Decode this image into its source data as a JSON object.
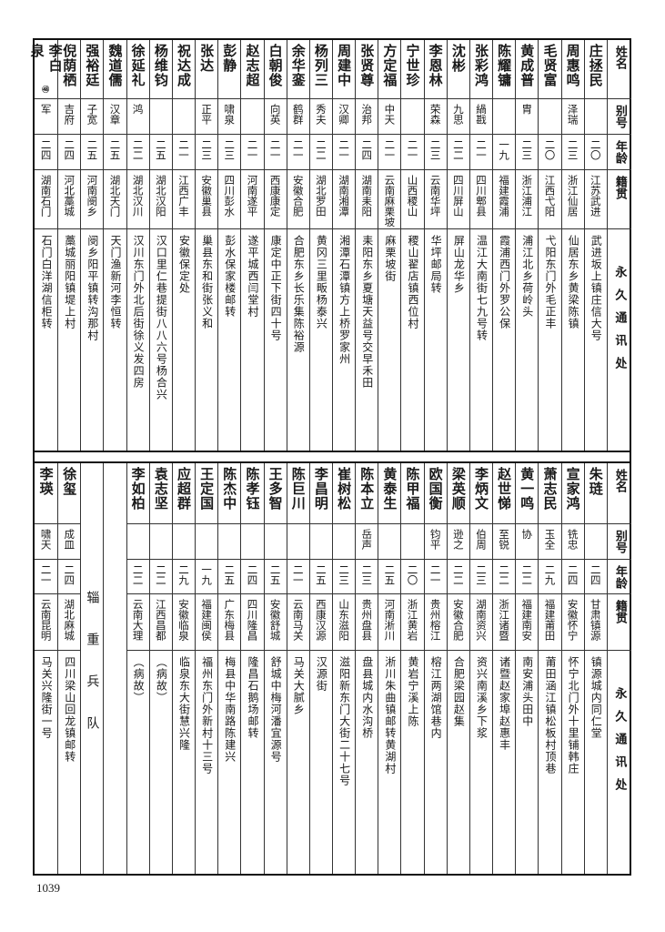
{
  "header": {
    "name": "姓名",
    "alias": "别号",
    "age": "年龄",
    "native": "籍贯",
    "address": "永久通讯处"
  },
  "top_table": {
    "rows": [
      {
        "name": "庄拯民",
        "alias": "",
        "age": "二〇",
        "native": "江苏武进",
        "address": "武进坂上镇庄信大号"
      },
      {
        "name": "周惠鸣",
        "alias": "泽瑞",
        "age": "二三",
        "native": "浙江仙居",
        "address": "仙居东乡黄梁陈镇"
      },
      {
        "name": "毛贤富",
        "alias": "",
        "age": "二〇",
        "native": "江西弋阳",
        "address": "弋阳东门外毛正丰"
      },
      {
        "name": "黄成普",
        "alias": "胄",
        "age": "二三",
        "native": "浙江浦江",
        "address": "浦江北乡荷岭头"
      },
      {
        "name": "陈耀镛",
        "alias": "",
        "age": "一九",
        "native": "福建霞浦",
        "address": "霞浦西门外罗公保"
      },
      {
        "name": "张彩鸿",
        "alias": "緺戡",
        "age": "二一",
        "native": "四川郫县",
        "address": "温江大南街七九号转"
      },
      {
        "name": "沈彬",
        "alias": "九思",
        "age": "二二",
        "native": "四川屏山",
        "address": "屏山龙华乡"
      },
      {
        "name": "李恩林",
        "alias": "荣森",
        "age": "二三",
        "native": "云南华坪",
        "address": "华坪邮局转"
      },
      {
        "name": "宁世珍",
        "alias": "",
        "age": "二一",
        "native": "山西稷山",
        "address": "稷山翟店镇西位村"
      },
      {
        "name": "方定福",
        "alias": "中天",
        "age": "二一",
        "native": "云南麻栗坡",
        "address": "麻栗坡街"
      },
      {
        "name": "张贤尊",
        "alias": "治邦",
        "age": "二四",
        "native": "湖南耒阳",
        "address": "耒阳东乡夏塘天益号交早禾田"
      },
      {
        "name": "周建中",
        "alias": "汉卿",
        "age": "二一",
        "native": "湖南湘潭",
        "address": "湘潭石潭镇方上桥罗家州"
      },
      {
        "name": "杨列三",
        "alias": "秀夫",
        "age": "二二",
        "native": "湖北罗田",
        "address": "黄冈三里畈杨泰兴"
      },
      {
        "name": "余华銮",
        "alias": "鹤群",
        "age": "二一",
        "native": "安徽合肥",
        "address": "合肥东乡长乐集陈裕源"
      },
      {
        "name": "白朝俊",
        "alias": "向英",
        "age": "二一",
        "native": "西康康定",
        "address": "康定中正下街四十号"
      },
      {
        "name": "赵志超",
        "alias": "",
        "age": "二一",
        "native": "河南遂平",
        "address": "遂平城西闫堂村"
      },
      {
        "name": "彭静",
        "alias": "啸泉",
        "age": "二三",
        "native": "四川彭水",
        "address": "彭水保家楼邮转"
      },
      {
        "name": "张达",
        "alias": "正平",
        "age": "二三",
        "native": "安徽巢县",
        "address": "巢县东和街张义和"
      },
      {
        "name": "祝达成",
        "alias": "",
        "age": "二一",
        "native": "江西广丰",
        "address": "安徽保定处"
      },
      {
        "name": "杨维钧",
        "alias": "",
        "age": "二五",
        "native": "湖北汉阳",
        "address": "汉口里仁巷提街八八六号杨合兴"
      },
      {
        "name": "徐延礼",
        "alias": "鸿",
        "age": "二二",
        "native": "湖北汉川",
        "address": "汉川东门外北后街徐义发四房"
      },
      {
        "name": "魏道儒",
        "alias": "汉章",
        "age": "二五",
        "native": "湖北天门",
        "address": "天门渔新河李恒转"
      },
      {
        "name": "强裕廷",
        "alias": "子宽",
        "age": "二五",
        "native": "河南阌乡",
        "address": "阌乡阳平镇转沟那村"
      },
      {
        "name": "倪荫栖",
        "alias": "吉府",
        "age": "二四",
        "native": "河北藁城",
        "address": "藁城丽阳镇堤上村"
      },
      {
        "name": "李白泉",
        "note": "㊽",
        "alias": "军",
        "age": "二四",
        "native": "湖南石门",
        "address": "石门白洋湖信柜转"
      }
    ]
  },
  "bottom_table": {
    "rows": [
      {
        "name": "朱琏",
        "alias": "",
        "age": "二四",
        "native": "甘肃镇源",
        "address": "镇源城内同仁堂"
      },
      {
        "name": "宣家鸿",
        "alias": "铣忠",
        "age": "二四",
        "native": "安徽怀宁",
        "address": "怀宁北门外十里铺韩庄"
      },
      {
        "name": "萧志民",
        "alias": "玉全",
        "age": "二九",
        "native": "福建莆田",
        "address": "莆田涵江镇松板村顶巷"
      },
      {
        "name": "黄一鸣",
        "alias": "协",
        "age": "二二",
        "native": "福建南安",
        "address": "南安浦头田中"
      },
      {
        "name": "赵世悌",
        "alias": "至锐",
        "age": "二二",
        "native": "浙江诸暨",
        "address": "诸暨赵家埠赵惠丰"
      },
      {
        "name": "李炳文",
        "alias": "伯周",
        "age": "二三",
        "native": "湖南资兴",
        "address": "资兴南溪乡下浆"
      },
      {
        "name": "梁英顺",
        "alias": "逊之",
        "age": "二二",
        "native": "安徽合肥",
        "address": "合肥梁园赵集"
      },
      {
        "name": "欧国衡",
        "alias": "钧平",
        "age": "二一",
        "native": "贵州榕江",
        "address": "榕江两湖馆巷内"
      },
      {
        "name": "陈甲福",
        "alias": "",
        "age": "二〇",
        "native": "浙江黄岩",
        "address": "黄岩宁溪上陈"
      },
      {
        "name": "黄泰生",
        "alias": "",
        "age": "二五",
        "native": "河南淅川",
        "address": "淅川朱曲镇邮转黄湖村"
      },
      {
        "name": "陈本立",
        "alias": "岳声",
        "age": "二三",
        "native": "贵州盘县",
        "address": "盘县城内水沟桥"
      },
      {
        "name": "崔树松",
        "alias": "",
        "age": "二三",
        "native": "山东滋阳",
        "address": "滋阳新东门大街二十七号"
      },
      {
        "name": "李昌明",
        "alias": "",
        "age": "二五",
        "native": "西康汉源",
        "address": "汉源街"
      },
      {
        "name": "陈巨川",
        "alias": "",
        "age": "二一",
        "native": "云南马关",
        "address": "马关大腻乡"
      },
      {
        "name": "王多智",
        "alias": "",
        "age": "二五",
        "native": "安徽舒城",
        "address": "舒城中梅河潘宜源号"
      },
      {
        "name": "陈孝钰",
        "alias": "",
        "age": "二四",
        "native": "四川隆昌",
        "address": "隆昌石鹅场邮转"
      },
      {
        "name": "陈杰中",
        "alias": "",
        "age": "二五",
        "native": "广东梅县",
        "address": "梅县中华南路陈建兴"
      },
      {
        "name": "王定国",
        "alias": "",
        "age": "一九",
        "native": "福建闽侯",
        "address": "福州东门外新村十三号"
      },
      {
        "name": "应超群",
        "alias": "",
        "age": "二九",
        "native": "安徽临泉",
        "address": "临泉东大街慧兴隆"
      },
      {
        "name": "袁志坚",
        "alias": "",
        "age": "二二",
        "native": "江西昌都",
        "address": "（病故）"
      },
      {
        "name": "李如柏",
        "alias": "",
        "age": "二二",
        "native": "云南大理",
        "address": "（病故）"
      }
    ],
    "section_label": "辎重兵队",
    "section_rows": [
      {
        "name": "徐玺",
        "alias": "成皿",
        "age": "二四",
        "native": "湖北麻城",
        "address": "四川梁山回龙镇邮转"
      },
      {
        "name": "李瑛",
        "alias": "啸天",
        "age": "二一",
        "native": "云南昆明",
        "address": "马关兴隆街一号"
      }
    ]
  },
  "page_number": "1039"
}
